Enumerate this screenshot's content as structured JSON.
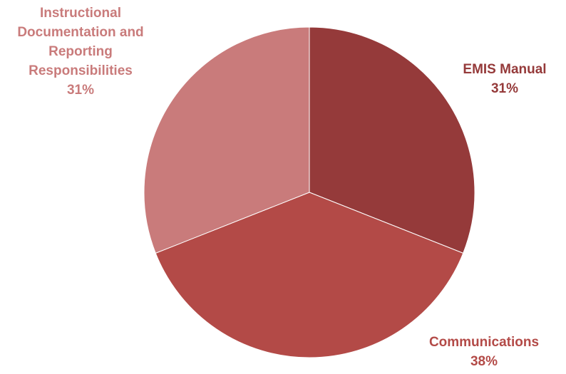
{
  "chart_data": {
    "type": "pie",
    "title": "",
    "slices": [
      {
        "label": "EMIS Manual",
        "value": 31,
        "display": "31%",
        "color": "#953A3A"
      },
      {
        "label": "Communications",
        "value": 38,
        "display": "38%",
        "color": "#B34A47"
      },
      {
        "label": "Instructional Documentation and Reporting Responsibilities",
        "value": 31,
        "display": "31%",
        "color": "#C97B7B"
      }
    ],
    "label_lines": [
      [
        "EMIS Manual"
      ],
      [
        "Communications"
      ],
      [
        "Instructional",
        "Documentation and",
        "Reporting",
        "Responsibilities"
      ]
    ],
    "legend": "none (data labels outside slices)"
  }
}
